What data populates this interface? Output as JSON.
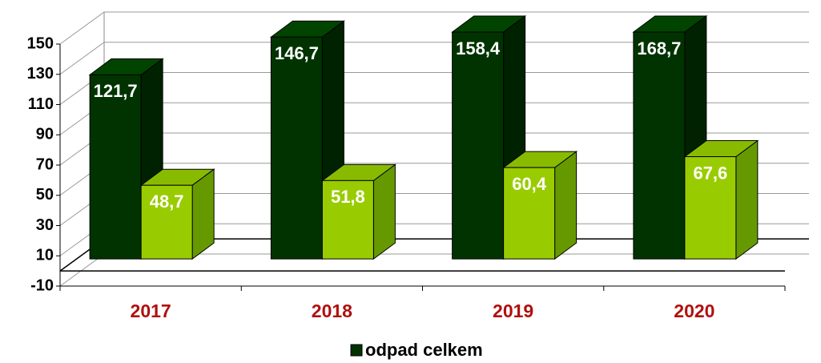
{
  "chart_data": {
    "type": "bar",
    "categories": [
      "2017",
      "2018",
      "2019",
      "2020"
    ],
    "series": [
      {
        "name": "odpad celkem",
        "color": "#003300",
        "values": [
          121.7,
          146.7,
          158.4,
          168.7
        ],
        "value_labels": [
          "121,7",
          "146,7",
          "158,4",
          "168,7"
        ]
      },
      {
        "color": "#99cc00",
        "values": [
          48.7,
          51.8,
          60.4,
          67.6
        ],
        "value_labels": [
          "48,7",
          "51,8",
          "60,4",
          "67,6"
        ]
      }
    ],
    "ylim": [
      -10,
      150
    ],
    "yticks": [
      -10,
      10,
      30,
      50,
      70,
      90,
      110,
      130,
      150
    ],
    "grid": true
  }
}
